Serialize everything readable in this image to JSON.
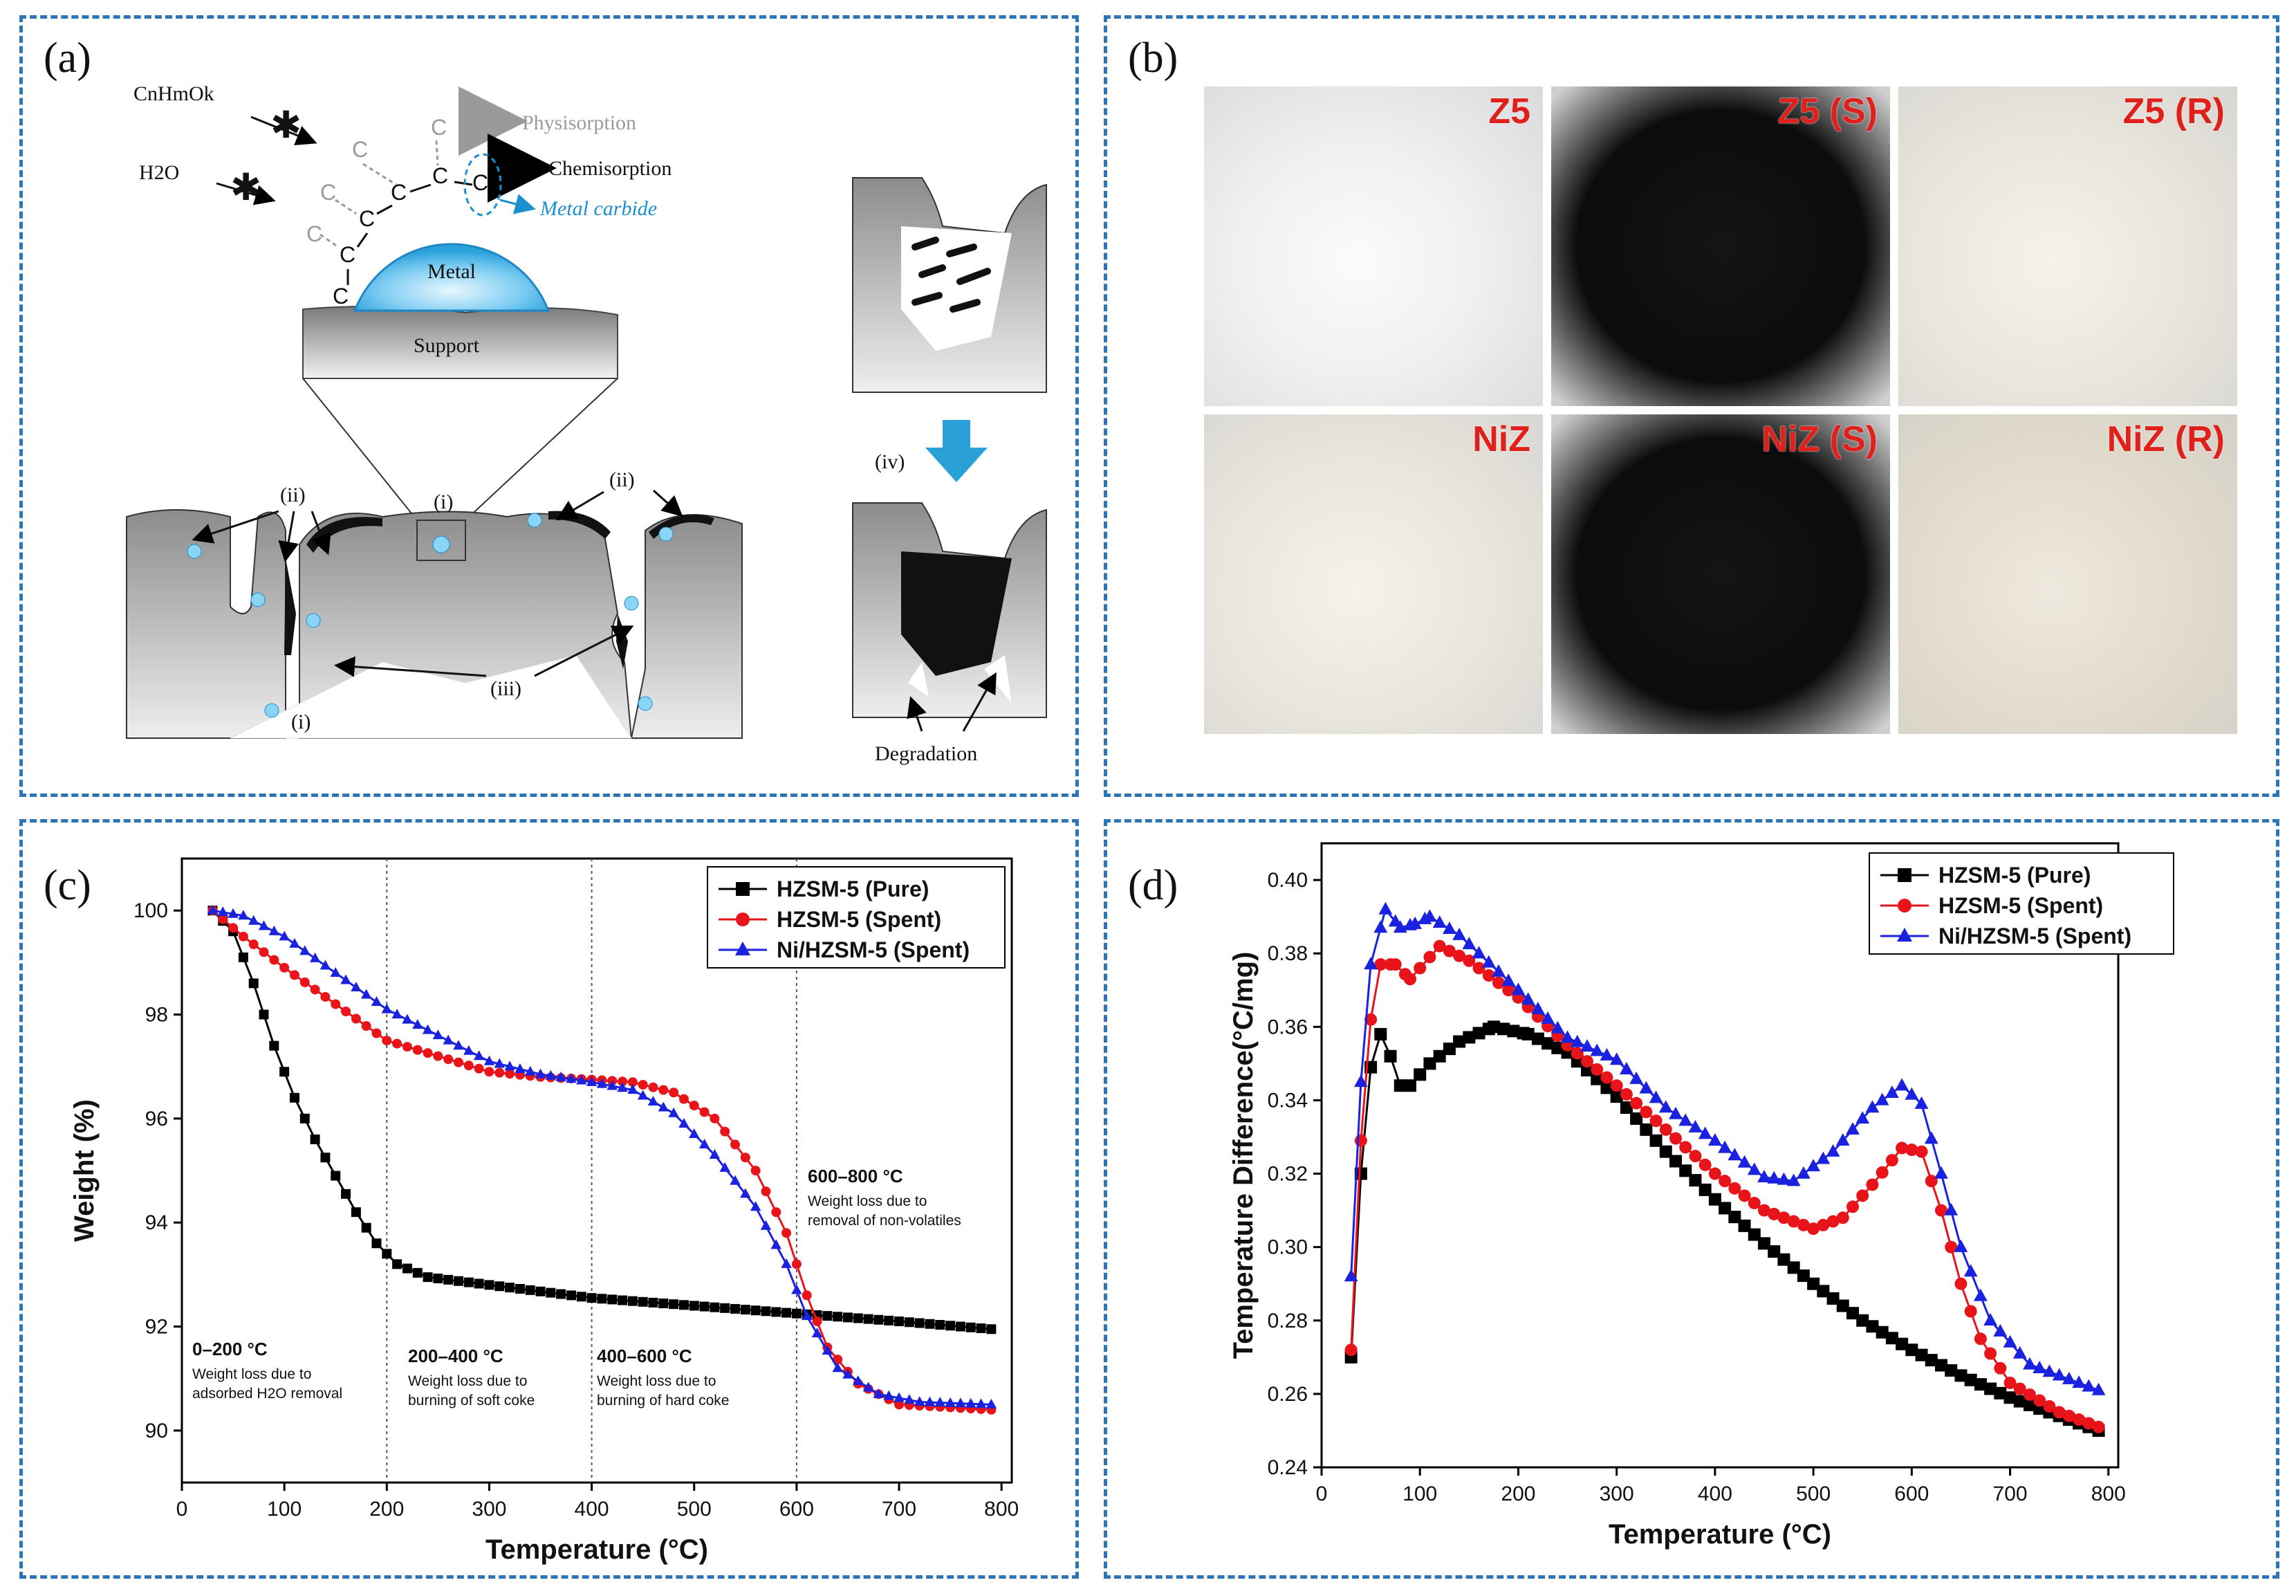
{
  "panels": {
    "a": {
      "label": "(a)",
      "molecule": "CnHmOk",
      "water": "H2O",
      "physisorption": "Physisorption",
      "chemisorption": "Chemisorption",
      "metal_carbide": "Metal carbide",
      "metal": "Metal",
      "support": "Support",
      "carbon": "C",
      "marker_i": "(i)",
      "marker_ii": "(ii)",
      "marker_iii": "(iii)",
      "marker_iv": "(iv)",
      "degradation": "Degradation",
      "colors": {
        "blue_arrow": "#2aa0d8",
        "carbide": "#1a8fd0",
        "gray": "#9a9a9a"
      }
    },
    "b": {
      "label": "(b)",
      "photos": [
        {
          "label": "Z5",
          "tone": "white"
        },
        {
          "label": "Z5 (S)",
          "tone": "black"
        },
        {
          "label": "Z5 (R)",
          "tone": "cream"
        },
        {
          "label": "NiZ",
          "tone": "cream"
        },
        {
          "label": "NiZ (S)",
          "tone": "black"
        },
        {
          "label": "NiZ (R)",
          "tone": "beige"
        }
      ]
    },
    "c": {
      "label": "(c)",
      "annotations": {
        "r1_title": "0–200 °C",
        "r1_l1": "Weight loss due to",
        "r1_l2": "adsorbed H2O removal",
        "r2_title": "200–400 °C",
        "r2_l1": "Weight loss due to",
        "r2_l2": "burning of soft coke",
        "r3_title": "400–600 °C",
        "r3_l1": "Weight loss due to",
        "r3_l2": "burning of hard coke",
        "r4_title": "600–800 °C",
        "r4_l1": "Weight loss due to",
        "r4_l2": "removal of non-volatiles"
      }
    },
    "d": {
      "label": "(d)"
    }
  },
  "chart_data": [
    {
      "id": "c",
      "type": "line",
      "xlabel": "Temperature (°C)",
      "ylabel": "Weight (%)",
      "xlim": [
        0,
        810
      ],
      "ylim": [
        89,
        101
      ],
      "xticks": [
        0,
        100,
        200,
        300,
        400,
        500,
        600,
        700,
        800
      ],
      "yticks": [
        90,
        92,
        94,
        96,
        98,
        100
      ],
      "region_lines_x": [
        200,
        400,
        600
      ],
      "legend_position": "top-right",
      "series": [
        {
          "name": "HZSM-5 (Pure)",
          "color": "#000000",
          "marker": "square",
          "points": [
            [
              30,
              100
            ],
            [
              50,
              99.6
            ],
            [
              70,
              98.6
            ],
            [
              90,
              97.4
            ],
            [
              110,
              96.4
            ],
            [
              130,
              95.6
            ],
            [
              150,
              94.9
            ],
            [
              170,
              94.2
            ],
            [
              190,
              93.6
            ],
            [
              210,
              93.2
            ],
            [
              240,
              92.95
            ],
            [
              300,
              92.8
            ],
            [
              400,
              92.55
            ],
            [
              500,
              92.4
            ],
            [
              600,
              92.25
            ],
            [
              700,
              92.1
            ],
            [
              790,
              91.95
            ]
          ]
        },
        {
          "name": "HZSM-5 (Spent)",
          "color": "#e8141a",
          "marker": "circle",
          "points": [
            [
              30,
              100
            ],
            [
              60,
              99.5
            ],
            [
              100,
              98.9
            ],
            [
              150,
              98.2
            ],
            [
              200,
              97.5
            ],
            [
              250,
              97.2
            ],
            [
              300,
              96.9
            ],
            [
              350,
              96.8
            ],
            [
              400,
              96.75
            ],
            [
              440,
              96.7
            ],
            [
              480,
              96.5
            ],
            [
              520,
              96.0
            ],
            [
              560,
              95.0
            ],
            [
              590,
              93.8
            ],
            [
              610,
              92.6
            ],
            [
              630,
              91.6
            ],
            [
              660,
              90.9
            ],
            [
              700,
              90.5
            ],
            [
              790,
              90.4
            ]
          ]
        },
        {
          "name": "Ni/HZSM-5 (Spent)",
          "color": "#1a22e0",
          "marker": "triangle",
          "points": [
            [
              30,
              100
            ],
            [
              60,
              99.9
            ],
            [
              100,
              99.5
            ],
            [
              150,
              98.8
            ],
            [
              200,
              98.1
            ],
            [
              250,
              97.6
            ],
            [
              300,
              97.1
            ],
            [
              350,
              96.85
            ],
            [
              400,
              96.7
            ],
            [
              440,
              96.55
            ],
            [
              480,
              96.1
            ],
            [
              520,
              95.3
            ],
            [
              560,
              94.3
            ],
            [
              590,
              93.2
            ],
            [
              610,
              92.2
            ],
            [
              640,
              91.2
            ],
            [
              680,
              90.7
            ],
            [
              720,
              90.55
            ],
            [
              790,
              90.5
            ]
          ]
        }
      ]
    },
    {
      "id": "d",
      "type": "line",
      "xlabel": "Temperature (°C)",
      "ylabel": "Temperature Difference(°C/mg)",
      "xlim": [
        0,
        810
      ],
      "ylim": [
        0.24,
        0.41
      ],
      "xticks": [
        0,
        100,
        200,
        300,
        400,
        500,
        600,
        700,
        800
      ],
      "yticks": [
        0.24,
        0.26,
        0.28,
        0.3,
        0.32,
        0.34,
        0.36,
        0.38,
        0.4
      ],
      "legend_position": "top-right",
      "series": [
        {
          "name": "HZSM-5 (Pure)",
          "color": "#000000",
          "marker": "square",
          "points": [
            [
              30,
              0.27
            ],
            [
              40,
              0.32
            ],
            [
              50,
              0.349
            ],
            [
              60,
              0.358
            ],
            [
              70,
              0.352
            ],
            [
              80,
              0.344
            ],
            [
              90,
              0.344
            ],
            [
              110,
              0.35
            ],
            [
              140,
              0.356
            ],
            [
              175,
              0.36
            ],
            [
              210,
              0.358
            ],
            [
              250,
              0.353
            ],
            [
              300,
              0.341
            ],
            [
              350,
              0.326
            ],
            [
              400,
              0.313
            ],
            [
              450,
              0.301
            ],
            [
              500,
              0.29
            ],
            [
              550,
              0.28
            ],
            [
              600,
              0.272
            ],
            [
              650,
              0.265
            ],
            [
              700,
              0.259
            ],
            [
              750,
              0.254
            ],
            [
              790,
              0.25
            ]
          ]
        },
        {
          "name": "HZSM-5 (Spent)",
          "color": "#e8141a",
          "marker": "circle",
          "points": [
            [
              30,
              0.272
            ],
            [
              40,
              0.329
            ],
            [
              50,
              0.362
            ],
            [
              60,
              0.377
            ],
            [
              75,
              0.377
            ],
            [
              90,
              0.373
            ],
            [
              100,
              0.376
            ],
            [
              120,
              0.382
            ],
            [
              150,
              0.378
            ],
            [
              200,
              0.368
            ],
            [
              250,
              0.355
            ],
            [
              300,
              0.344
            ],
            [
              350,
              0.332
            ],
            [
              400,
              0.32
            ],
            [
              450,
              0.31
            ],
            [
              500,
              0.305
            ],
            [
              530,
              0.308
            ],
            [
              560,
              0.317
            ],
            [
              590,
              0.327
            ],
            [
              610,
              0.326
            ],
            [
              630,
              0.31
            ],
            [
              650,
              0.29
            ],
            [
              670,
              0.275
            ],
            [
              700,
              0.263
            ],
            [
              750,
              0.255
            ],
            [
              790,
              0.251
            ]
          ]
        },
        {
          "name": "Ni/HZSM-5 (Spent)",
          "color": "#1a22e0",
          "marker": "triangle",
          "points": [
            [
              30,
              0.292
            ],
            [
              40,
              0.345
            ],
            [
              50,
              0.377
            ],
            [
              65,
              0.392
            ],
            [
              80,
              0.387
            ],
            [
              95,
              0.388
            ],
            [
              110,
              0.39
            ],
            [
              140,
              0.385
            ],
            [
              200,
              0.37
            ],
            [
              250,
              0.357
            ],
            [
              300,
              0.351
            ],
            [
              350,
              0.338
            ],
            [
              400,
              0.329
            ],
            [
              450,
              0.319
            ],
            [
              480,
              0.318
            ],
            [
              520,
              0.326
            ],
            [
              560,
              0.338
            ],
            [
              590,
              0.344
            ],
            [
              610,
              0.339
            ],
            [
              630,
              0.32
            ],
            [
              650,
              0.3
            ],
            [
              680,
              0.28
            ],
            [
              720,
              0.268
            ],
            [
              760,
              0.264
            ],
            [
              790,
              0.261
            ]
          ]
        }
      ]
    }
  ]
}
